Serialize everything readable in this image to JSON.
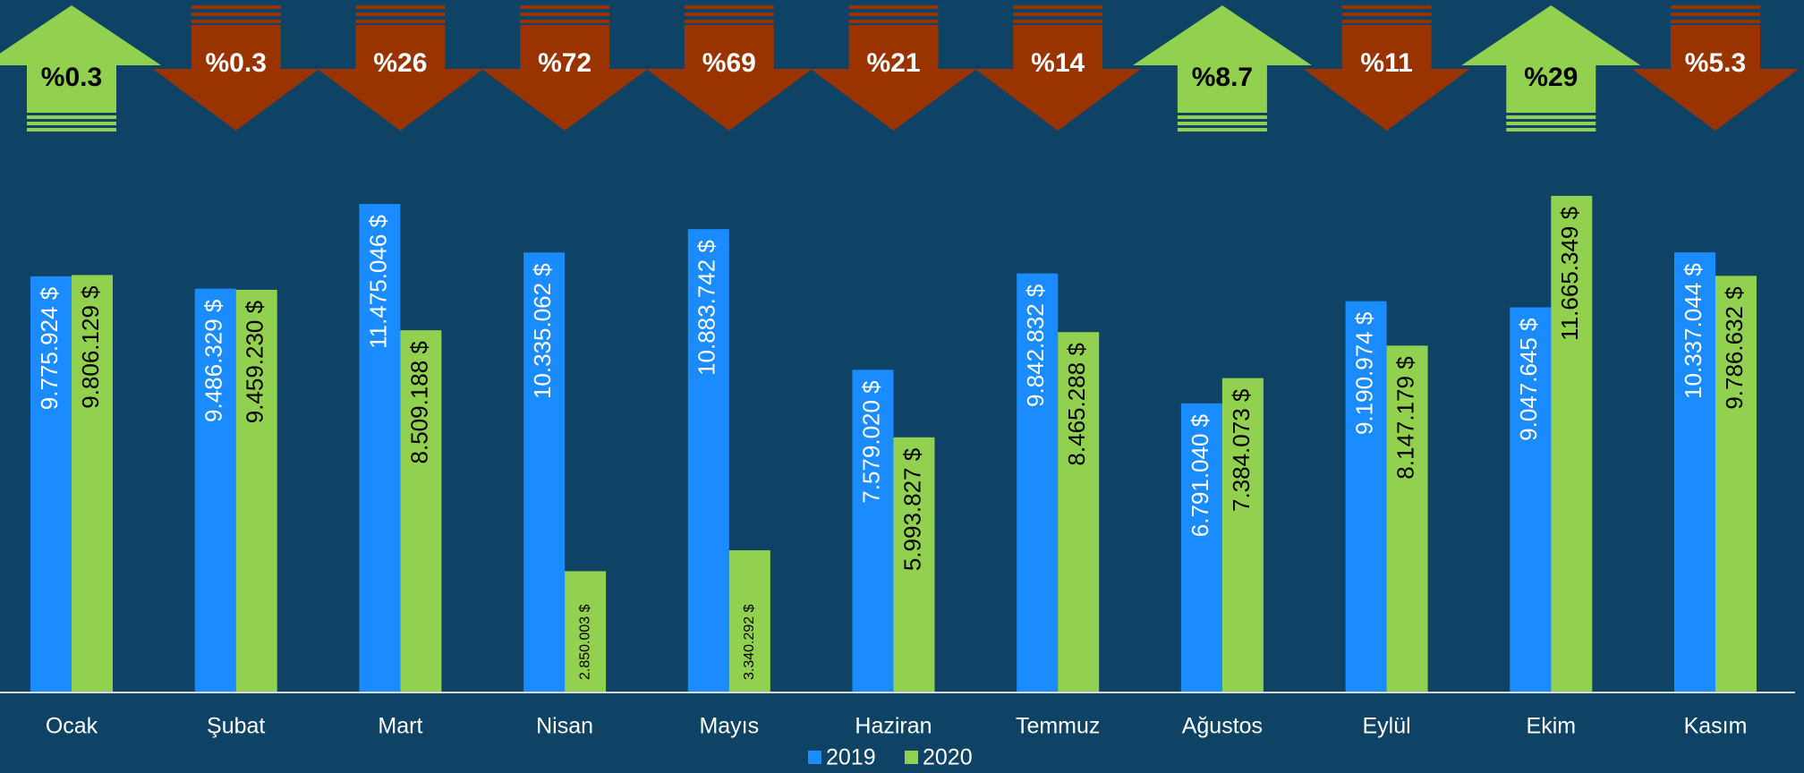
{
  "chart_data": {
    "type": "bar",
    "categories": [
      "Ocak",
      "Şubat",
      "Mart",
      "Nisan",
      "Mayıs",
      "Haziran",
      "Temmuz",
      "Ağustos",
      "Eylül",
      "Ekim",
      "Kasım"
    ],
    "series": [
      {
        "name": "2019",
        "color": "#1a8cff",
        "label_color": "#ffffff",
        "values": [
          9775924,
          9486329,
          11475046,
          10335062,
          10883742,
          7579020,
          9842832,
          6791040,
          9190974,
          9047645,
          10337044
        ],
        "value_labels": [
          "9.775.924 $",
          "9.486.329 $",
          "11.475.046 $",
          "10.335.062 $",
          "10.883.742 $",
          "7.579.020 $",
          "9.842.832 $",
          "6.791.040 $",
          "9.190.974 $",
          "9.047.645 $",
          "10.337.044 $"
        ]
      },
      {
        "name": "2020",
        "color": "#92d050",
        "label_color": "#000000",
        "values": [
          9806129,
          9459230,
          8509188,
          2850003,
          3340292,
          5993827,
          8465288,
          7384073,
          8147179,
          11665349,
          9786632
        ],
        "value_labels": [
          "9.806.129 $",
          "9.459.230 $",
          "8.509.188 $",
          "2.850.003 $",
          "3.340.292 $",
          "5.993.827 $",
          "8.465.288 $",
          "7.384.073 $",
          "8.147.179 $",
          "11.665.349 $",
          "9.786.632 $"
        ]
      }
    ],
    "changes": [
      0.3,
      -0.3,
      -26,
      -72,
      -69,
      -21,
      -14,
      8.7,
      -11,
      29,
      -5.3
    ],
    "change_labels": [
      "%0.3",
      "%0.3",
      "%26",
      "%72",
      "%69",
      "%21",
      "%14",
      "%8.7",
      "%11",
      "%29",
      "%5.3"
    ],
    "up_color": "#92d050",
    "down_color": "#993300",
    "ylim": [
      0,
      12000000
    ],
    "legend": "bottom"
  }
}
